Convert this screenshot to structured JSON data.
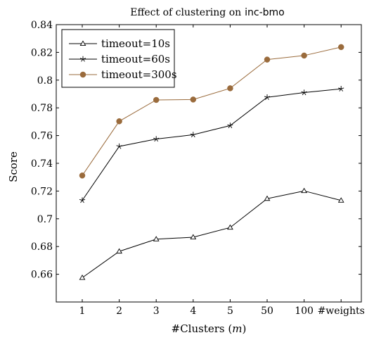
{
  "chart_data": {
    "type": "line",
    "title": "Effect of clustering on",
    "title_code": "inc-bmo",
    "xlabel": "#Clusters (",
    "xlabel_var": "m",
    "xlabel_end": ")",
    "ylabel": "Score",
    "categories": [
      "1",
      "2",
      "3",
      "4",
      "5",
      "50",
      "100",
      "#weights"
    ],
    "ylim": [
      0.64,
      0.84
    ],
    "yticks": [
      "0.66",
      "0.68",
      "0.7",
      "0.72",
      "0.74",
      "0.76",
      "0.78",
      "0.8",
      "0.82",
      "0.84"
    ],
    "grid": false,
    "legend_position": "top-left",
    "series": [
      {
        "name": "timeout=10s",
        "marker": "triangle",
        "color": "#000000",
        "values": [
          0.6575,
          0.6765,
          0.6853,
          0.6867,
          0.6937,
          0.7145,
          0.7201,
          0.7132
        ]
      },
      {
        "name": "timeout=60s",
        "marker": "star",
        "color": "#000000",
        "values": [
          0.7133,
          0.7522,
          0.7575,
          0.7606,
          0.7672,
          0.7876,
          0.791,
          0.7937
        ]
      },
      {
        "name": "timeout=300s",
        "marker": "circle",
        "color": "#9a6b3c",
        "values": [
          0.7312,
          0.7703,
          0.7857,
          0.786,
          0.7941,
          0.8148,
          0.8177,
          0.8238
        ]
      }
    ]
  }
}
